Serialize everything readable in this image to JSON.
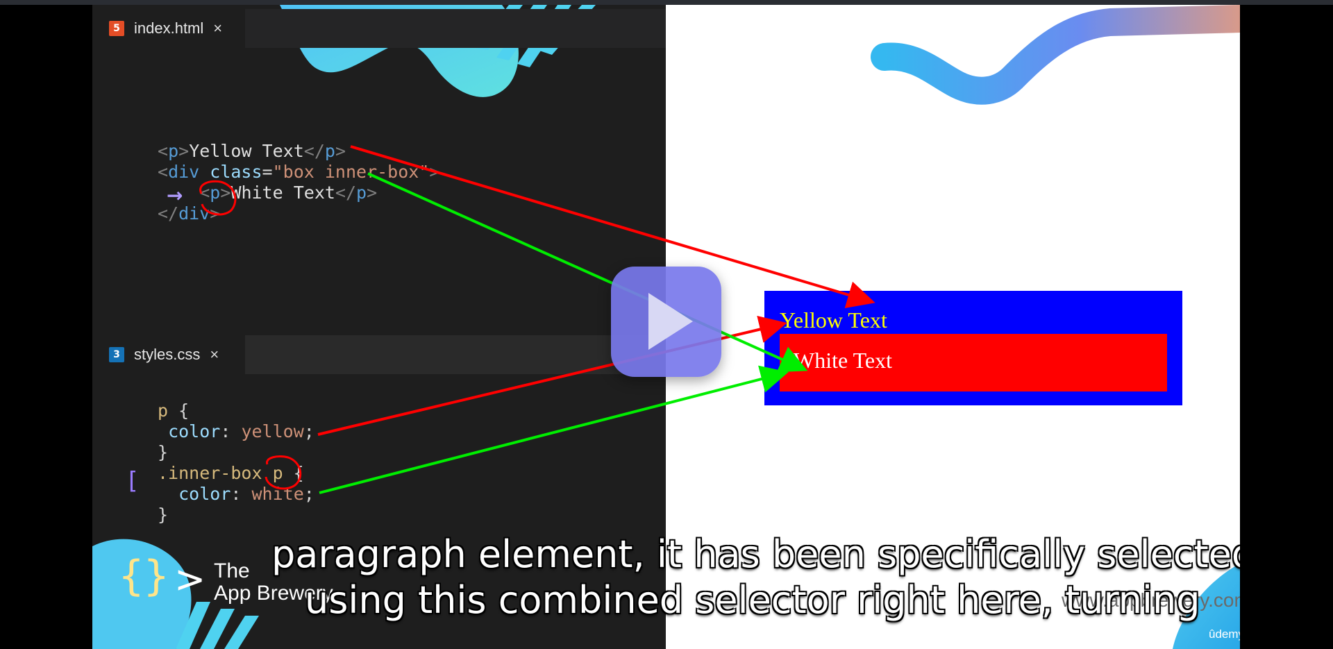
{
  "editor": {
    "html_tab": {
      "icon": "html5-icon",
      "label": "index.html",
      "close": "×"
    },
    "css_tab": {
      "icon": "css3-icon",
      "label": "styles.css",
      "close": "×"
    },
    "html_code": [
      "<p>Yellow Text</p>",
      "<div class=\"box inner-box\">",
      "<p>White Text</p>",
      "</div>"
    ],
    "css_code": [
      "p {",
      "color: yellow;",
      "}",
      ".inner-box p {",
      "color: white;",
      "}"
    ]
  },
  "preview": {
    "outer_text": "Yellow Text",
    "inner_text": "White Text",
    "outer_color": "#0000ff",
    "inner_color": "#ff0000",
    "yellow": "#ffff00"
  },
  "branding": {
    "logo_braces": "{}",
    "logo_chevron": ">",
    "logo_text_1": "The",
    "logo_text_2": "App Brewery",
    "website": "www.appbrewery.com",
    "udemy": "ûdemy"
  },
  "annotations": {
    "red_arrow_color": "#ff0000",
    "green_arrow_color": "#00ee00"
  },
  "player": {
    "play_icon": "play-icon"
  },
  "subtitles": {
    "line1": "paragraph element, it has been specifically selected",
    "line2": "using this combined selector right here, turning"
  }
}
